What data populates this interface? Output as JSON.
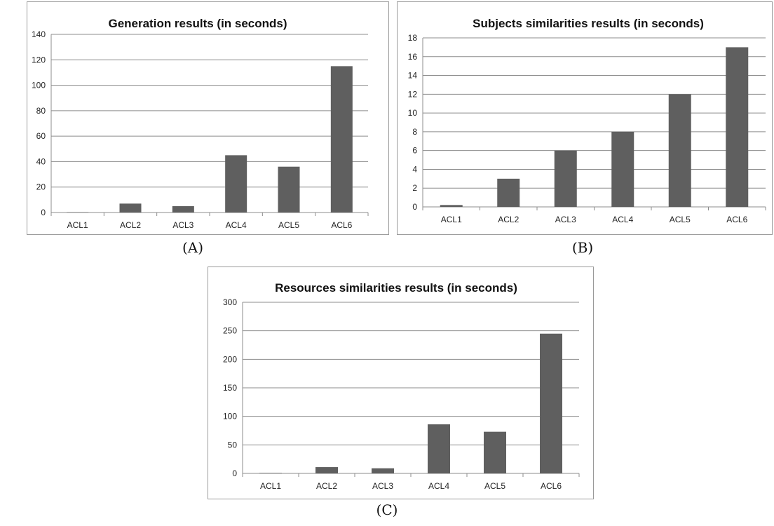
{
  "charts": [
    {
      "caption": "(A)",
      "chart_data": {
        "type": "bar",
        "title": "Generation results (in seconds)",
        "categories": [
          "ACL1",
          "ACL2",
          "ACL3",
          "ACL4",
          "ACL5",
          "ACL6"
        ],
        "values": [
          0.3,
          7,
          5,
          45,
          36,
          115
        ],
        "ylim": [
          0,
          140
        ],
        "yticks": [
          0,
          20,
          40,
          60,
          80,
          100,
          120,
          140
        ],
        "grid": true,
        "legend": "none",
        "bar_color": "#5f5f5f"
      }
    },
    {
      "caption": "(B)",
      "chart_data": {
        "type": "bar",
        "title": "Subjects similarities results (in seconds)",
        "categories": [
          "ACL1",
          "ACL2",
          "ACL3",
          "ACL4",
          "ACL5",
          "ACL6"
        ],
        "values": [
          0.2,
          3,
          6,
          8,
          12,
          17
        ],
        "ylim": [
          0,
          18
        ],
        "yticks": [
          0,
          2,
          4,
          6,
          8,
          10,
          12,
          14,
          16,
          18
        ],
        "grid": true,
        "legend": "none",
        "bar_color": "#5f5f5f"
      }
    },
    {
      "caption": "(C)",
      "chart_data": {
        "type": "bar",
        "title": "Resources similarities results (in seconds)",
        "categories": [
          "ACL1",
          "ACL2",
          "ACL3",
          "ACL4",
          "ACL5",
          "ACL6"
        ],
        "values": [
          0.8,
          11,
          9,
          86,
          73,
          245
        ],
        "ylim": [
          0,
          300
        ],
        "yticks": [
          0,
          50,
          100,
          150,
          200,
          250,
          300
        ],
        "grid": true,
        "legend": "none",
        "bar_color": "#5f5f5f"
      }
    }
  ]
}
